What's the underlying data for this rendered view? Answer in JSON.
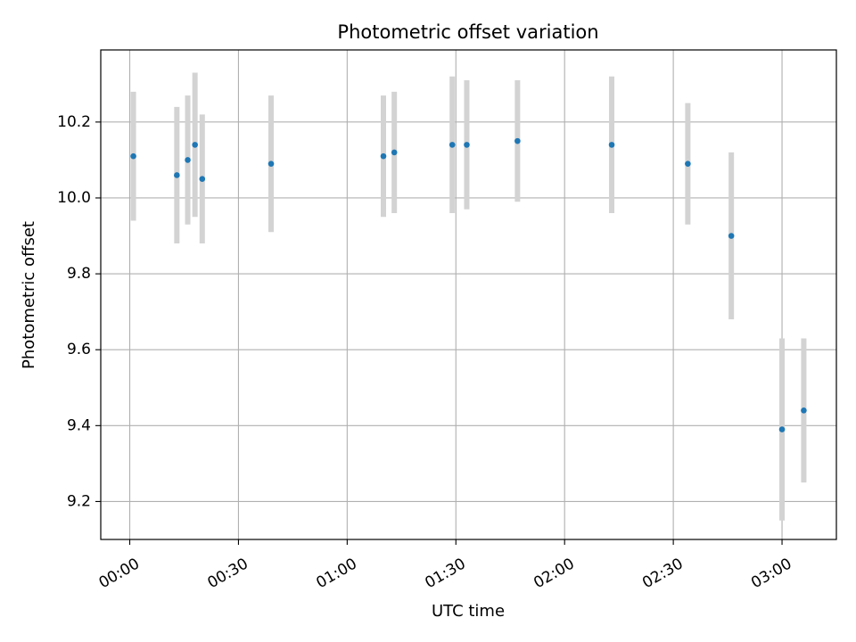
{
  "chart_data": {
    "type": "scatter",
    "title": "Photometric offset variation",
    "xlabel": "UTC time",
    "ylabel": "Photometric offset",
    "grid": true,
    "xlim": [
      "23:52",
      "03:15"
    ],
    "ylim": [
      9.1,
      10.39
    ],
    "x_ticks": [
      "00:00",
      "00:30",
      "01:00",
      "01:30",
      "02:00",
      "02:30",
      "03:00"
    ],
    "y_ticks": [
      "9.2",
      "9.4",
      "9.6",
      "9.8",
      "10.0",
      "10.2"
    ],
    "colors": {
      "point": "#1f77b4",
      "errorbar": "#d3d3d3",
      "grid": "#b0b0b0"
    },
    "points": [
      {
        "x": "00:01",
        "y": 10.11,
        "err": 0.17
      },
      {
        "x": "00:13",
        "y": 10.06,
        "err": 0.18
      },
      {
        "x": "00:16",
        "y": 10.1,
        "err": 0.17
      },
      {
        "x": "00:18",
        "y": 10.14,
        "err": 0.19
      },
      {
        "x": "00:20",
        "y": 10.05,
        "err": 0.17
      },
      {
        "x": "00:39",
        "y": 10.09,
        "err": 0.18
      },
      {
        "x": "01:10",
        "y": 10.11,
        "err": 0.16
      },
      {
        "x": "01:13",
        "y": 10.12,
        "err": 0.16
      },
      {
        "x": "01:29",
        "y": 10.14,
        "err": 0.18
      },
      {
        "x": "01:33",
        "y": 10.14,
        "err": 0.17
      },
      {
        "x": "01:47",
        "y": 10.15,
        "err": 0.16
      },
      {
        "x": "02:13",
        "y": 10.14,
        "err": 0.18
      },
      {
        "x": "02:34",
        "y": 10.09,
        "err": 0.16
      },
      {
        "x": "02:46",
        "y": 9.9,
        "err": 0.22
      },
      {
        "x": "03:00",
        "y": 9.39,
        "err": 0.24
      },
      {
        "x": "03:06",
        "y": 9.44,
        "err": 0.19
      }
    ]
  }
}
